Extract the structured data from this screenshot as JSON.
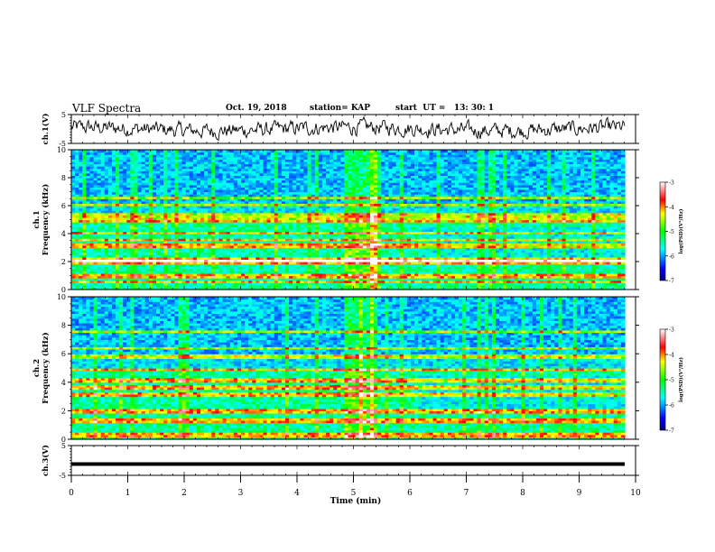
{
  "header": {
    "title": "VLF Spectra",
    "date": "Oct. 19, 2018",
    "station": "station= KAP",
    "start_ut": "start  UT =   13: 30: 1"
  },
  "chart_data": [
    {
      "type": "line",
      "panel": "ch1-waveform",
      "ylabel": "ch.1(V)",
      "ylim": [
        -5,
        5
      ],
      "yticks": [
        "5",
        "-5"
      ],
      "x_range_min": [
        0,
        9.8
      ],
      "color": "#000000"
    },
    {
      "type": "heatmap",
      "panel": "ch1-spectrogram",
      "ylabel": "ch.1\nFrequency (kHz)",
      "ylim": [
        0,
        10
      ],
      "yticks": [
        "0",
        "2",
        "4",
        "6",
        "8",
        "10"
      ],
      "bands_khz": [
        0.6,
        1.0,
        2.0,
        2.2,
        3.2,
        3.6,
        4.1,
        5.0,
        5.3,
        6.1,
        6.6
      ],
      "burst_min": [
        4.85,
        5.45
      ],
      "colorbar": {
        "label": "log(PSD)(V²/Hz)",
        "ticks": [
          "-3",
          "-4",
          "-5",
          "-6",
          "-7"
        ],
        "range": [
          -7,
          -3
        ]
      }
    },
    {
      "type": "heatmap",
      "panel": "ch2-spectrogram",
      "ylabel": "ch.2\nFrequency (kHz)",
      "ylim": [
        0,
        10
      ],
      "yticks": [
        "0",
        "2",
        "4",
        "6",
        "8",
        "10"
      ],
      "bands_khz": [
        0.3,
        1.3,
        2.0,
        3.2,
        3.7,
        4.2,
        4.9,
        5.8,
        6.4,
        7.6
      ],
      "burst_min": [
        4.85,
        5.45
      ],
      "colorbar": {
        "label": "log(PSD)(V²/Hz)",
        "ticks": [
          "-3",
          "-4",
          "-5",
          "-6",
          "-7"
        ],
        "range": [
          -7,
          -3
        ]
      }
    },
    {
      "type": "line",
      "panel": "ch3-waveform",
      "ylabel": "ch.3(V)",
      "ylim": [
        -5,
        5
      ],
      "yticks": [
        "5",
        "-5"
      ],
      "level_v": -1.2,
      "color": "#000000"
    }
  ],
  "xaxis": {
    "label": "Time (min)",
    "range": [
      0,
      10
    ],
    "ticks": [
      "0",
      "1",
      "2",
      "3",
      "4",
      "5",
      "6",
      "7",
      "8",
      "9",
      "10"
    ]
  }
}
